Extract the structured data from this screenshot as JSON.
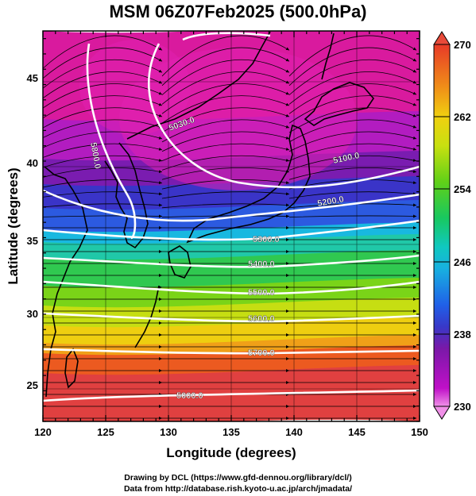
{
  "title": "MSM 06Z07Feb2025 (500.0hPa)",
  "x_axis": {
    "label": "Longitude (degrees)",
    "range": [
      120,
      150
    ],
    "ticks": [
      "120",
      "125",
      "130",
      "135",
      "140",
      "145",
      "150"
    ]
  },
  "y_axis": {
    "label": "Latitude  (degrees)",
    "range": [
      22.5,
      48
    ],
    "ticks": [
      "25",
      "30",
      "35",
      "40",
      "45"
    ]
  },
  "colorbar": {
    "range": [
      230,
      270
    ],
    "ticks": [
      "230",
      "238",
      "246",
      "254",
      "262",
      "270"
    ],
    "colors": [
      "#f090e8",
      "#c010c8",
      "#7a18a8",
      "#3040d0",
      "#1898e8",
      "#10c8c8",
      "#20c850",
      "#78d818",
      "#e0e010",
      "#f0a018",
      "#ef4a1f",
      "#e04040"
    ]
  },
  "contours": [
    {
      "label": "5000.0"
    },
    {
      "label": "5030.0"
    },
    {
      "label": "5100.0"
    },
    {
      "label": "5200.0"
    },
    {
      "label": "5300.0"
    },
    {
      "label": "5400.0"
    },
    {
      "label": "5500.0"
    },
    {
      "label": "5600.0"
    },
    {
      "label": "5700.0"
    },
    {
      "label": "5800.0"
    }
  ],
  "credits": {
    "line1": "Drawing by DCL (https://www.gfd-dennou.org/library/dcl/)",
    "line2": "Data from http://database.rish.kyoto-u.ac.jp/arch/jmadata/"
  }
}
